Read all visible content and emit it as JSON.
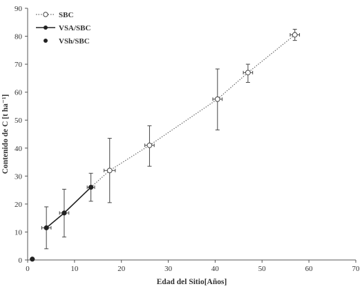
{
  "chart_data": {
    "type": "scatter",
    "xlabel": "Edad del Sitio[Años]",
    "ylabel": "Contenido de C [t ha⁻¹]",
    "xlim": [
      0,
      70
    ],
    "ylim": [
      0,
      90
    ],
    "xticks": [
      0,
      10,
      20,
      30,
      40,
      50,
      60,
      70
    ],
    "yticks": [
      0,
      10,
      20,
      30,
      40,
      50,
      60,
      70,
      80,
      90
    ],
    "grid": false,
    "legend_position": "top-left",
    "series": [
      {
        "name": "SBC",
        "marker": "open-circle",
        "line": "dotted",
        "color": "#666666",
        "points": [
          {
            "x": 17.5,
            "y": 32,
            "ylo": 20.5,
            "yhi": 43.5,
            "xerr": 1.2
          },
          {
            "x": 26,
            "y": 41,
            "ylo": 33.5,
            "yhi": 48,
            "xerr": 1.0
          },
          {
            "x": 40.5,
            "y": 57.5,
            "ylo": 46.5,
            "yhi": 68.3,
            "xerr": 1.0
          },
          {
            "x": 47,
            "y": 67,
            "ylo": 63.5,
            "yhi": 70,
            "xerr": 1.0
          },
          {
            "x": 57,
            "y": 80.5,
            "ylo": 78.5,
            "yhi": 82.5,
            "xerr": 1.0
          }
        ],
        "connect_from": {
          "x": 13.5,
          "y": 26
        }
      },
      {
        "name": "VSA/SBC",
        "marker": "filled-circle",
        "line": "solid",
        "color": "#222222",
        "points": [
          {
            "x": 4,
            "y": 11.5,
            "ylo": 4,
            "yhi": 19,
            "xerr": 1.0
          },
          {
            "x": 7.8,
            "y": 16.8,
            "ylo": 8.2,
            "yhi": 25.3,
            "xerr": 1.0
          },
          {
            "x": 13.5,
            "y": 26,
            "ylo": 21,
            "yhi": 31,
            "xerr": 0.8
          }
        ]
      },
      {
        "name": "VSh/SBC",
        "marker": "filled-circle",
        "line": "none",
        "color": "#222222",
        "points": [
          {
            "x": 1,
            "y": 0.3
          }
        ]
      }
    ]
  }
}
